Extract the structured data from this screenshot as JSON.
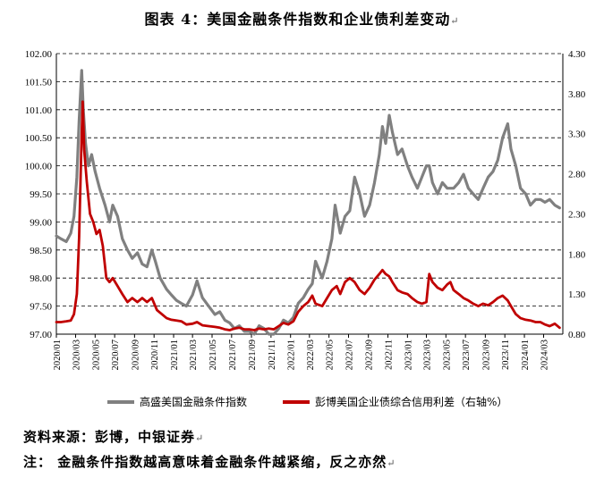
{
  "header": {
    "title": "图表 4：美国金融条件指数和企业债利差变动",
    "title_mark": "↵"
  },
  "footer": {
    "source": "资料来源：彭博，中银证券",
    "note": "注：  金融条件指数越高意味着金融条件越紧缩，反之亦然",
    "line_mark": "↵"
  },
  "chart_data": {
    "type": "line",
    "title": "",
    "x_ticks": [
      "2020/01",
      "2020/03",
      "2020/05",
      "2020/07",
      "2020/09",
      "2020/11",
      "2021/01",
      "2021/03",
      "2021/05",
      "2021/07",
      "2021/09",
      "2021/11",
      "2022/01",
      "2022/03",
      "2022/05",
      "2022/07",
      "2022/09",
      "2022/11",
      "2023/01",
      "2023/03",
      "2023/05",
      "2023/07",
      "2023/09",
      "2023/11",
      "2024/01",
      "2024/03"
    ],
    "left_axis": {
      "ylim": [
        97.0,
        102.0
      ],
      "tick_labels": [
        "97.00",
        "97.50",
        "98.00",
        "98.50",
        "99.00",
        "99.50",
        "100.00",
        "100.50",
        "101.00",
        "101.50",
        "102.00"
      ]
    },
    "right_axis": {
      "ylim": [
        0.8,
        4.3
      ],
      "tick_labels": [
        "0.80",
        "1.30",
        "1.80",
        "2.30",
        "2.80",
        "3.30",
        "3.80",
        "4.30"
      ]
    },
    "grid": "horizontal dashed",
    "legend_position": "bottom",
    "series": [
      {
        "name": "高盛美国金融条件指数",
        "axis": "left",
        "color": "#808080",
        "points": [
          [
            "2020/01/01",
            98.75
          ],
          [
            "2020/01/15",
            98.7
          ],
          [
            "2020/02/01",
            98.65
          ],
          [
            "2020/02/15",
            98.8
          ],
          [
            "2020/02/25",
            99.1
          ],
          [
            "2020/03/05",
            99.8
          ],
          [
            "2020/03/12",
            100.8
          ],
          [
            "2020/03/20",
            101.7
          ],
          [
            "2020/03/25",
            101.0
          ],
          [
            "2020/04/01",
            100.4
          ],
          [
            "2020/04/10",
            100.0
          ],
          [
            "2020/04/20",
            100.2
          ],
          [
            "2020/05/01",
            99.9
          ],
          [
            "2020/05/15",
            99.6
          ],
          [
            "2020/06/01",
            99.3
          ],
          [
            "2020/06/15",
            99.0
          ],
          [
            "2020/06/25",
            99.3
          ],
          [
            "2020/07/10",
            99.1
          ],
          [
            "2020/07/25",
            98.7
          ],
          [
            "2020/08/10",
            98.5
          ],
          [
            "2020/08/25",
            98.35
          ],
          [
            "2020/09/10",
            98.45
          ],
          [
            "2020/09/25",
            98.25
          ],
          [
            "2020/10/10",
            98.2
          ],
          [
            "2020/10/25",
            98.5
          ],
          [
            "2020/11/05",
            98.3
          ],
          [
            "2020/11/20",
            98.0
          ],
          [
            "2020/12/10",
            97.8
          ],
          [
            "2020/12/25",
            97.7
          ],
          [
            "2021/01/10",
            97.6
          ],
          [
            "2021/01/25",
            97.55
          ],
          [
            "2021/02/10",
            97.5
          ],
          [
            "2021/03/01",
            97.7
          ],
          [
            "2021/03/15",
            97.95
          ],
          [
            "2021/04/01",
            97.65
          ],
          [
            "2021/04/20",
            97.5
          ],
          [
            "2021/05/10",
            97.35
          ],
          [
            "2021/05/25",
            97.4
          ],
          [
            "2021/06/10",
            97.25
          ],
          [
            "2021/06/25",
            97.2
          ],
          [
            "2021/07/10",
            97.1
          ],
          [
            "2021/07/25",
            97.15
          ],
          [
            "2021/08/10",
            97.05
          ],
          [
            "2021/08/25",
            97.05
          ],
          [
            "2021/09/10",
            97.0
          ],
          [
            "2021/09/25",
            97.15
          ],
          [
            "2021/10/10",
            97.1
          ],
          [
            "2021/10/25",
            97.0
          ],
          [
            "2021/11/10",
            97.0
          ],
          [
            "2021/11/25",
            97.1
          ],
          [
            "2021/12/10",
            97.25
          ],
          [
            "2021/12/25",
            97.2
          ],
          [
            "2022/01/10",
            97.3
          ],
          [
            "2022/01/25",
            97.55
          ],
          [
            "2022/02/10",
            97.65
          ],
          [
            "2022/02/25",
            97.8
          ],
          [
            "2022/03/10",
            97.9
          ],
          [
            "2022/03/20",
            98.3
          ],
          [
            "2022/04/10",
            98.0
          ],
          [
            "2022/04/25",
            98.3
          ],
          [
            "2022/05/10",
            98.7
          ],
          [
            "2022/05/20",
            99.3
          ],
          [
            "2022/06/05",
            98.8
          ],
          [
            "2022/06/20",
            99.1
          ],
          [
            "2022/07/05",
            99.2
          ],
          [
            "2022/07/20",
            99.8
          ],
          [
            "2022/08/05",
            99.5
          ],
          [
            "2022/08/20",
            99.1
          ],
          [
            "2022/09/05",
            99.3
          ],
          [
            "2022/09/20",
            99.7
          ],
          [
            "2022/10/05",
            100.2
          ],
          [
            "2022/10/15",
            100.7
          ],
          [
            "2022/10/25",
            100.4
          ],
          [
            "2022/11/05",
            100.9
          ],
          [
            "2022/11/15",
            100.6
          ],
          [
            "2022/12/01",
            100.2
          ],
          [
            "2022/12/15",
            100.3
          ],
          [
            "2023/01/01",
            100.0
          ],
          [
            "2023/01/15",
            99.8
          ],
          [
            "2023/02/01",
            99.6
          ],
          [
            "2023/02/15",
            99.8
          ],
          [
            "2023/03/01",
            100.0
          ],
          [
            "2023/03/10",
            100.0
          ],
          [
            "2023/03/20",
            99.7
          ],
          [
            "2023/04/05",
            99.5
          ],
          [
            "2023/04/20",
            99.7
          ],
          [
            "2023/05/05",
            99.6
          ],
          [
            "2023/05/25",
            99.6
          ],
          [
            "2023/06/10",
            99.7
          ],
          [
            "2023/06/25",
            99.85
          ],
          [
            "2023/07/10",
            99.6
          ],
          [
            "2023/07/25",
            99.5
          ],
          [
            "2023/08/10",
            99.4
          ],
          [
            "2023/08/25",
            99.6
          ],
          [
            "2023/09/10",
            99.8
          ],
          [
            "2023/09/25",
            99.9
          ],
          [
            "2023/10/10",
            100.1
          ],
          [
            "2023/10/25",
            100.5
          ],
          [
            "2023/11/10",
            100.75
          ],
          [
            "2023/11/20",
            100.3
          ],
          [
            "2023/12/05",
            100.0
          ],
          [
            "2023/12/20",
            99.6
          ],
          [
            "2024/01/05",
            99.5
          ],
          [
            "2024/01/20",
            99.3
          ],
          [
            "2024/02/05",
            99.4
          ],
          [
            "2024/02/20",
            99.4
          ],
          [
            "2024/03/05",
            99.35
          ],
          [
            "2024/03/20",
            99.4
          ],
          [
            "2024/04/05",
            99.3
          ],
          [
            "2024/04/20",
            99.25
          ]
        ]
      },
      {
        "name": "彭博美国企业债综合信用利差（右轴%）",
        "axis": "right",
        "color": "#c00000",
        "points": [
          [
            "2020/01/01",
            0.95
          ],
          [
            "2020/01/15",
            0.95
          ],
          [
            "2020/02/01",
            0.96
          ],
          [
            "2020/02/15",
            0.97
          ],
          [
            "2020/02/25",
            1.05
          ],
          [
            "2020/03/05",
            1.3
          ],
          [
            "2020/03/12",
            2.0
          ],
          [
            "2020/03/20",
            3.3
          ],
          [
            "2020/03/23",
            3.7
          ],
          [
            "2020/03/28",
            3.1
          ],
          [
            "2020/04/05",
            2.7
          ],
          [
            "2020/04/15",
            2.3
          ],
          [
            "2020/04/25",
            2.2
          ],
          [
            "2020/05/05",
            2.05
          ],
          [
            "2020/05/15",
            2.1
          ],
          [
            "2020/05/25",
            1.9
          ],
          [
            "2020/06/05",
            1.5
          ],
          [
            "2020/06/15",
            1.45
          ],
          [
            "2020/06/25",
            1.5
          ],
          [
            "2020/07/10",
            1.4
          ],
          [
            "2020/07/25",
            1.3
          ],
          [
            "2020/08/10",
            1.2
          ],
          [
            "2020/08/25",
            1.25
          ],
          [
            "2020/09/10",
            1.2
          ],
          [
            "2020/09/25",
            1.25
          ],
          [
            "2020/10/10",
            1.2
          ],
          [
            "2020/10/25",
            1.25
          ],
          [
            "2020/11/10",
            1.1
          ],
          [
            "2020/11/25",
            1.05
          ],
          [
            "2020/12/10",
            1.0
          ],
          [
            "2020/12/25",
            0.98
          ],
          [
            "2021/01/10",
            0.97
          ],
          [
            "2021/01/25",
            0.96
          ],
          [
            "2021/02/10",
            0.92
          ],
          [
            "2021/03/01",
            0.93
          ],
          [
            "2021/03/15",
            0.95
          ],
          [
            "2021/04/01",
            0.91
          ],
          [
            "2021/04/20",
            0.9
          ],
          [
            "2021/05/10",
            0.89
          ],
          [
            "2021/05/25",
            0.88
          ],
          [
            "2021/06/10",
            0.86
          ],
          [
            "2021/06/25",
            0.85
          ],
          [
            "2021/07/10",
            0.87
          ],
          [
            "2021/07/25",
            0.88
          ],
          [
            "2021/08/10",
            0.86
          ],
          [
            "2021/08/25",
            0.86
          ],
          [
            "2021/09/10",
            0.85
          ],
          [
            "2021/09/25",
            0.87
          ],
          [
            "2021/10/10",
            0.86
          ],
          [
            "2021/10/25",
            0.87
          ],
          [
            "2021/11/10",
            0.86
          ],
          [
            "2021/11/25",
            0.9
          ],
          [
            "2021/12/10",
            0.94
          ],
          [
            "2021/12/25",
            0.92
          ],
          [
            "2022/01/10",
            0.96
          ],
          [
            "2022/01/25",
            1.08
          ],
          [
            "2022/02/10",
            1.15
          ],
          [
            "2022/02/25",
            1.2
          ],
          [
            "2022/03/10",
            1.28
          ],
          [
            "2022/03/20",
            1.18
          ],
          [
            "2022/04/10",
            1.15
          ],
          [
            "2022/04/25",
            1.25
          ],
          [
            "2022/05/10",
            1.35
          ],
          [
            "2022/05/25",
            1.4
          ],
          [
            "2022/06/05",
            1.3
          ],
          [
            "2022/06/20",
            1.45
          ],
          [
            "2022/07/05",
            1.5
          ],
          [
            "2022/07/20",
            1.45
          ],
          [
            "2022/08/05",
            1.35
          ],
          [
            "2022/08/20",
            1.3
          ],
          [
            "2022/09/05",
            1.38
          ],
          [
            "2022/09/20",
            1.48
          ],
          [
            "2022/10/05",
            1.55
          ],
          [
            "2022/10/15",
            1.6
          ],
          [
            "2022/10/25",
            1.55
          ],
          [
            "2022/11/05",
            1.52
          ],
          [
            "2022/11/15",
            1.45
          ],
          [
            "2022/12/01",
            1.35
          ],
          [
            "2022/12/15",
            1.32
          ],
          [
            "2023/01/01",
            1.3
          ],
          [
            "2023/01/15",
            1.25
          ],
          [
            "2023/02/01",
            1.2
          ],
          [
            "2023/02/15",
            1.18
          ],
          [
            "2023/03/01",
            1.2
          ],
          [
            "2023/03/10",
            1.55
          ],
          [
            "2023/03/20",
            1.45
          ],
          [
            "2023/04/05",
            1.38
          ],
          [
            "2023/04/20",
            1.35
          ],
          [
            "2023/05/05",
            1.42
          ],
          [
            "2023/05/15",
            1.45
          ],
          [
            "2023/05/25",
            1.35
          ],
          [
            "2023/06/10",
            1.3
          ],
          [
            "2023/06/25",
            1.25
          ],
          [
            "2023/07/10",
            1.22
          ],
          [
            "2023/07/25",
            1.18
          ],
          [
            "2023/08/10",
            1.15
          ],
          [
            "2023/08/25",
            1.18
          ],
          [
            "2023/09/10",
            1.16
          ],
          [
            "2023/09/25",
            1.2
          ],
          [
            "2023/10/10",
            1.25
          ],
          [
            "2023/10/25",
            1.28
          ],
          [
            "2023/11/10",
            1.22
          ],
          [
            "2023/11/20",
            1.15
          ],
          [
            "2023/12/05",
            1.05
          ],
          [
            "2023/12/20",
            1.0
          ],
          [
            "2024/01/05",
            0.98
          ],
          [
            "2024/01/20",
            0.97
          ],
          [
            "2024/02/05",
            0.95
          ],
          [
            "2024/02/20",
            0.95
          ],
          [
            "2024/03/05",
            0.92
          ],
          [
            "2024/03/20",
            0.9
          ],
          [
            "2024/04/05",
            0.93
          ],
          [
            "2024/04/20",
            0.88
          ]
        ]
      }
    ]
  }
}
